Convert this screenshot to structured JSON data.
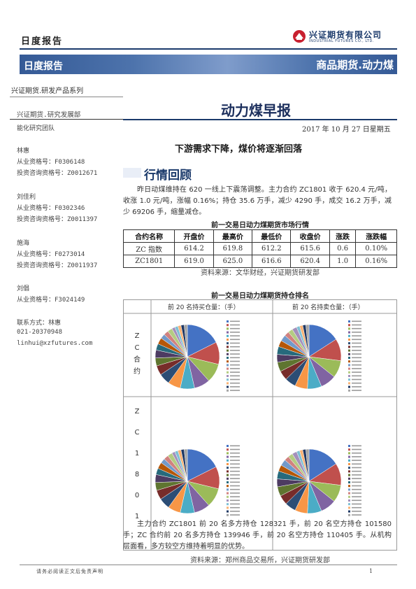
{
  "header": {
    "top_label": "日度报告",
    "logo_cn": "兴证期货有限公司",
    "logo_en": "INDUSTRIAL FUTURES CO., LTD.",
    "banner_left": "日度报告",
    "banner_right": "商品期货.动力煤"
  },
  "colors": {
    "brand": "#1b3a6b",
    "banner": "#4d73ac",
    "logo_red": "#c8202f"
  },
  "sidebar": {
    "series": "兴证期货.研发产品系列",
    "dept": "兴证期货.研究发展部",
    "team": "能化研究团队",
    "analysts": [
      {
        "name": "林惠",
        "lines": [
          "从业资格号：F0306148",
          "投资咨询资格号：Z0012671"
        ]
      },
      {
        "name": "刘佳利",
        "lines": [
          "从业资格号：F0302346",
          "投资咨询资格号：Z0011397"
        ]
      },
      {
        "name": "施海",
        "lines": [
          "从业资格号：F0273014",
          "投资咨询资格号：Z0011937"
        ]
      },
      {
        "name": "刘倡",
        "lines": [
          "从业资格号：F3024149"
        ]
      }
    ],
    "contact": {
      "label": "联系方式：林惠",
      "phone": "021-20370948",
      "email": "linhui@xzfutures.com"
    }
  },
  "main": {
    "title": "动力煤早报",
    "date": "2017 年 10 月 27 日星期五",
    "headline": "下游需求下降，煤价将逐渐回落",
    "section_title": "行情回顾",
    "para1": "昨日动煤维持在 620 一线上下震荡调整。主力合约 ZC1801 收于 620.4 元/吨，收涨 1.0 元/吨，涨幅 0.16%；持仓 35.6 万手，减少 4290 手，成交 16.2 万手，减少 69206 手，缩量减仓。",
    "table_title": "前一交易日动力煤期货市场行情",
    "table_headers": [
      "合约名称",
      "开盘价",
      "最高价",
      "最低价",
      "收盘价",
      "涨跌",
      "涨跌幅"
    ],
    "table_rows": [
      [
        "ZC 指数",
        "614.2",
        "619.8",
        "612.2",
        "615.6",
        "0.6",
        "0.10%"
      ],
      [
        "ZC1801",
        "619.0",
        "625.0",
        "616.6",
        "620.4",
        "1.0",
        "0.16%"
      ]
    ],
    "table_source": "资料来源：文华财经，兴证期货研发部",
    "pie_title": "前一交易日动力煤期货持仓排名",
    "pie_col_long": "前 20 名持买仓量：（手）",
    "pie_col_short": "前 20 名持卖仓量：（手）",
    "pie_row1": [
      "Z",
      "C",
      "合",
      "约"
    ],
    "pie_row2": [
      "Z",
      "C",
      "1",
      "8",
      "0",
      "1"
    ],
    "pie_source": "资料来源：郑州商品交易所，兴证期货研发部",
    "para2": "主力合约 ZC1801 前 20 名多方持仓 128321 手，前 20 名空方持仓 101580 手；ZC 合约前 20 名多方持仓 139946 手，前 20 名空方持仓 110405 手。从机构层面看，多方较空方维持着明显的优势。"
  },
  "footer": {
    "note": "请务必阅读正文后免责声明",
    "page": "1"
  }
}
